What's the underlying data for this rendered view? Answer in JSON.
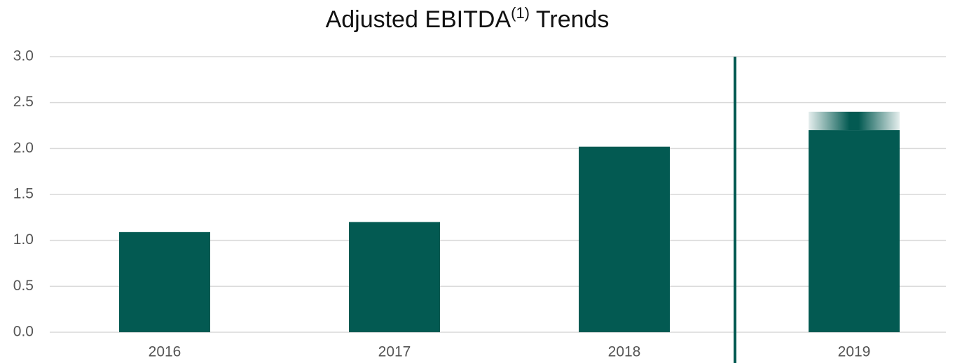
{
  "chart_data": {
    "type": "bar",
    "title": "Adjusted EBITDA",
    "title_superscript": "(1)",
    "title_suffix": "Trends",
    "categories": [
      "2016",
      "2017",
      "2018",
      "2019"
    ],
    "values": [
      1.09,
      1.2,
      2.02,
      2.2
    ],
    "range_values": [
      null,
      null,
      null,
      0.2
    ],
    "color": "#035a52",
    "ylim": [
      0,
      3
    ],
    "yticks": [
      {
        "value": 0,
        "label": "0.0"
      },
      {
        "value": 0.5,
        "label": "0.5"
      },
      {
        "value": 1,
        "label": "1.0"
      },
      {
        "value": 1.5,
        "label": "1.5"
      },
      {
        "value": 2,
        "label": "2.0"
      },
      {
        "value": 2.5,
        "label": "2.5"
      },
      {
        "value": 3,
        "label": "3.0"
      }
    ],
    "grid": true
  }
}
